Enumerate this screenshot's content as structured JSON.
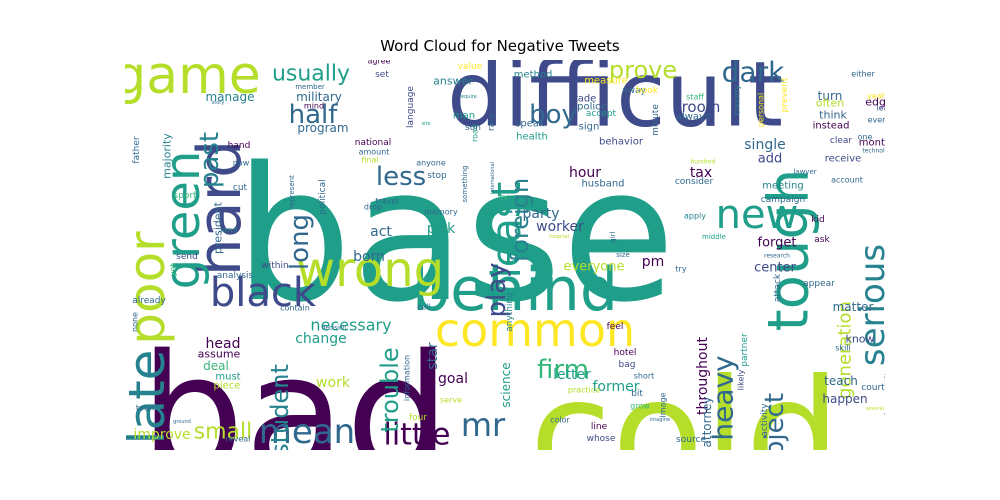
{
  "chart_data": {
    "type": "word_cloud",
    "title": "Word Cloud for Negative Tweets",
    "palette": [
      "#440154",
      "#482878",
      "#3e4a89",
      "#31688e",
      "#26828e",
      "#1f9e89",
      "#35b779",
      "#6ece58",
      "#b5de2b",
      "#fde725"
    ],
    "words": [
      {
        "text": "base",
        "size": 100
      },
      {
        "text": "bad",
        "size": 92
      },
      {
        "text": "cold",
        "size": 82
      },
      {
        "text": "difficult",
        "size": 62
      },
      {
        "text": "behind",
        "size": 44
      },
      {
        "text": "hard",
        "size": 44
      },
      {
        "text": "tough",
        "size": 42
      },
      {
        "text": "game",
        "size": 40
      },
      {
        "text": "late",
        "size": 38
      },
      {
        "text": "poor",
        "size": 38
      },
      {
        "text": "green",
        "size": 36
      },
      {
        "text": "wrong",
        "size": 36
      },
      {
        "text": "common",
        "size": 34
      },
      {
        "text": "black",
        "size": 30
      },
      {
        "text": "new",
        "size": 30
      },
      {
        "text": "least",
        "size": 28
      },
      {
        "text": "serious",
        "size": 27
      },
      {
        "text": "mean",
        "size": 26
      },
      {
        "text": "mr",
        "size": 26
      },
      {
        "text": "little",
        "size": 24
      },
      {
        "text": "prove",
        "size": 22
      },
      {
        "text": "dark",
        "size": 22
      },
      {
        "text": "half",
        "size": 22
      },
      {
        "text": "past",
        "size": 22
      },
      {
        "text": "long",
        "size": 22
      },
      {
        "text": "less",
        "size": 22
      },
      {
        "text": "boy",
        "size": 22
      },
      {
        "text": "firm",
        "size": 22
      },
      {
        "text": "heavy",
        "size": 22
      },
      {
        "text": "subject",
        "size": 22
      },
      {
        "text": "play",
        "size": 22
      },
      {
        "text": "foreign",
        "size": 22
      },
      {
        "text": "trouble",
        "size": 20
      },
      {
        "text": "student",
        "size": 20
      },
      {
        "text": "small",
        "size": 20
      },
      {
        "text": "usually",
        "size": 18
      },
      {
        "text": "generation",
        "size": 14
      },
      {
        "text": "necessary",
        "size": 14
      },
      {
        "text": "room",
        "size": 14
      },
      {
        "text": "hour",
        "size": 12
      },
      {
        "text": "tax",
        "size": 12
      },
      {
        "text": "single",
        "size": 12
      },
      {
        "text": "add",
        "size": 12
      },
      {
        "text": "forget",
        "size": 12
      },
      {
        "text": "center",
        "size": 12
      },
      {
        "text": "party",
        "size": 12
      },
      {
        "text": "worker",
        "size": 12
      },
      {
        "text": "pick",
        "size": 12
      },
      {
        "text": "act",
        "size": 12
      },
      {
        "text": "born",
        "size": 12
      },
      {
        "text": "pm",
        "size": 12
      },
      {
        "text": "everyone",
        "size": 12
      },
      {
        "text": "letter",
        "size": 12
      },
      {
        "text": "former",
        "size": 12
      },
      {
        "text": "goal",
        "size": 12
      },
      {
        "text": "work",
        "size": 12
      },
      {
        "text": "change",
        "size": 12
      },
      {
        "text": "star",
        "size": 12
      },
      {
        "text": "head",
        "size": 12
      },
      {
        "text": "assume",
        "size": 11
      },
      {
        "text": "deal",
        "size": 11
      },
      {
        "text": "must",
        "size": 10
      },
      {
        "text": "piece",
        "size": 10
      },
      {
        "text": "improve",
        "size": 12
      },
      {
        "text": "throughout",
        "size": 11
      },
      {
        "text": "attorney",
        "size": 10
      },
      {
        "text": "science",
        "size": 11
      },
      {
        "text": "teach",
        "size": 11
      },
      {
        "text": "happen",
        "size": 11
      },
      {
        "text": "matter",
        "size": 11
      },
      {
        "text": "know",
        "size": 10
      },
      {
        "text": "rock",
        "size": 10
      },
      {
        "text": "security",
        "size": 10
      },
      {
        "text": "scene",
        "size": 10
      },
      {
        "text": "turn",
        "size": 11
      },
      {
        "text": "edge",
        "size": 10
      },
      {
        "text": "often",
        "size": 10
      },
      {
        "text": "think",
        "size": 10
      },
      {
        "text": "instead",
        "size": 9
      },
      {
        "text": "receive",
        "size": 10
      },
      {
        "text": "month",
        "size": 9
      },
      {
        "text": "meeting",
        "size": 10
      },
      {
        "text": "campaign",
        "size": 9
      },
      {
        "text": "military",
        "size": 11
      },
      {
        "text": "manage",
        "size": 11
      },
      {
        "text": "program",
        "size": 11
      },
      {
        "text": "majority",
        "size": 10
      },
      {
        "text": "president",
        "size": 10
      },
      {
        "text": "answer",
        "size": 10
      },
      {
        "text": "method",
        "size": 9
      },
      {
        "text": "measure",
        "size": 9
      },
      {
        "text": "language",
        "size": 8
      },
      {
        "text": "speak",
        "size": 9
      },
      {
        "text": "trade",
        "size": 9
      },
      {
        "text": "police",
        "size": 9
      },
      {
        "text": "sign",
        "size": 9
      },
      {
        "text": "health",
        "size": 9
      },
      {
        "text": "behavior",
        "size": 9
      },
      {
        "text": "husband",
        "size": 9
      },
      {
        "text": "consider",
        "size": 8
      },
      {
        "text": "political",
        "size": 8
      },
      {
        "text": "national",
        "size": 8
      },
      {
        "text": "analysis",
        "size": 8
      },
      {
        "text": "within",
        "size": 8
      },
      {
        "text": "contain",
        "size": 7
      },
      {
        "text": "anything",
        "size": 8
      },
      {
        "text": "feel",
        "size": 8
      },
      {
        "text": "hotel",
        "size": 8
      },
      {
        "text": "bag",
        "size": 8
      },
      {
        "text": "line",
        "size": 8
      },
      {
        "text": "whose",
        "size": 8
      },
      {
        "text": "source",
        "size": 8
      },
      {
        "text": "color",
        "size": 7
      },
      {
        "text": "partner",
        "size": 8
      },
      {
        "text": "activity",
        "size": 8
      },
      {
        "text": "likely",
        "size": 7
      },
      {
        "text": "attack",
        "size": 8
      },
      {
        "text": "appear",
        "size": 8
      },
      {
        "text": "kid",
        "size": 8
      },
      {
        "text": "ask",
        "size": 8
      },
      {
        "text": "skill",
        "size": 7
      },
      {
        "text": "account",
        "size": 7
      },
      {
        "text": "court",
        "size": 8
      },
      {
        "text": "total",
        "size": 7
      },
      {
        "text": "father",
        "size": 8
      },
      {
        "text": "hand",
        "size": 8
      },
      {
        "text": "now",
        "size": 7
      },
      {
        "text": "cut",
        "size": 8
      },
      {
        "text": "sport",
        "size": 8
      },
      {
        "text": "send",
        "size": 8
      },
      {
        "text": "already",
        "size": 8
      },
      {
        "text": "none",
        "size": 7
      },
      {
        "text": "yet",
        "size": 7
      },
      {
        "text": "land",
        "size": 7
      },
      {
        "text": "represent",
        "size": 6
      },
      {
        "text": "amount",
        "size": 7
      },
      {
        "text": "mind",
        "size": 7
      },
      {
        "text": "member",
        "size": 6
      },
      {
        "text": "agree",
        "size": 7
      },
      {
        "text": "set",
        "size": 8
      },
      {
        "text": "value",
        "size": 8
      },
      {
        "text": "away",
        "size": 8
      },
      {
        "text": "book",
        "size": 8
      },
      {
        "text": "staff",
        "size": 7
      },
      {
        "text": "accept",
        "size": 8
      },
      {
        "text": "always",
        "size": 9
      },
      {
        "text": "minute",
        "size": 8
      },
      {
        "text": "country",
        "size": 7
      },
      {
        "text": "personal",
        "size": 7
      },
      {
        "text": "prevent",
        "size": 8
      },
      {
        "text": "either",
        "size": 7
      },
      {
        "text": "yeah",
        "size": 7
      },
      {
        "text": "lead",
        "size": 7
      },
      {
        "text": "event",
        "size": 7
      },
      {
        "text": "clear",
        "size": 8
      },
      {
        "text": "one",
        "size": 7
      },
      {
        "text": "lawyer",
        "size": 6
      },
      {
        "text": "hundred",
        "size": 5
      },
      {
        "text": "research",
        "size": 5
      },
      {
        "text": "technology",
        "size": 5
      },
      {
        "text": "final",
        "size": 7
      },
      {
        "text": "drop",
        "size": 7
      },
      {
        "text": "travel",
        "size": 7
      },
      {
        "text": "anyone",
        "size": 7
      },
      {
        "text": "stop",
        "size": 8
      },
      {
        "text": "memory",
        "size": 7
      },
      {
        "text": "rule",
        "size": 6
      },
      {
        "text": "something",
        "size": 6
      },
      {
        "text": "road",
        "size": 7
      },
      {
        "text": "son",
        "size": 8
      },
      {
        "text": "man",
        "size": 9
      },
      {
        "text": "rate",
        "size": 8
      },
      {
        "text": "international",
        "size": 5
      },
      {
        "text": "tv",
        "size": 8
      },
      {
        "text": "girl",
        "size": 6
      },
      {
        "text": "size",
        "size": 7
      },
      {
        "text": "try",
        "size": 7
      },
      {
        "text": "apply",
        "size": 7
      },
      {
        "text": "middle",
        "size": 6
      },
      {
        "text": "practice",
        "size": 7
      },
      {
        "text": "short",
        "size": 7
      },
      {
        "text": "bit",
        "size": 8
      },
      {
        "text": "grow",
        "size": 7
      },
      {
        "text": "image",
        "size": 7
      },
      {
        "text": "imagine",
        "size": 5
      },
      {
        "text": "information",
        "size": 7
      },
      {
        "text": "cell",
        "size": 7
      },
      {
        "text": "decision",
        "size": 5
      },
      {
        "text": "four",
        "size": 8
      },
      {
        "text": "serve",
        "size": 7
      },
      {
        "text": "reveal",
        "size": 7
      },
      {
        "text": "ground",
        "size": 5
      },
      {
        "text": "story",
        "size": 5
      },
      {
        "text": "site",
        "size": 5
      },
      {
        "text": "require",
        "size": 5
      },
      {
        "text": "hospital",
        "size": 5
      },
      {
        "text": "several",
        "size": 5
      }
    ]
  }
}
